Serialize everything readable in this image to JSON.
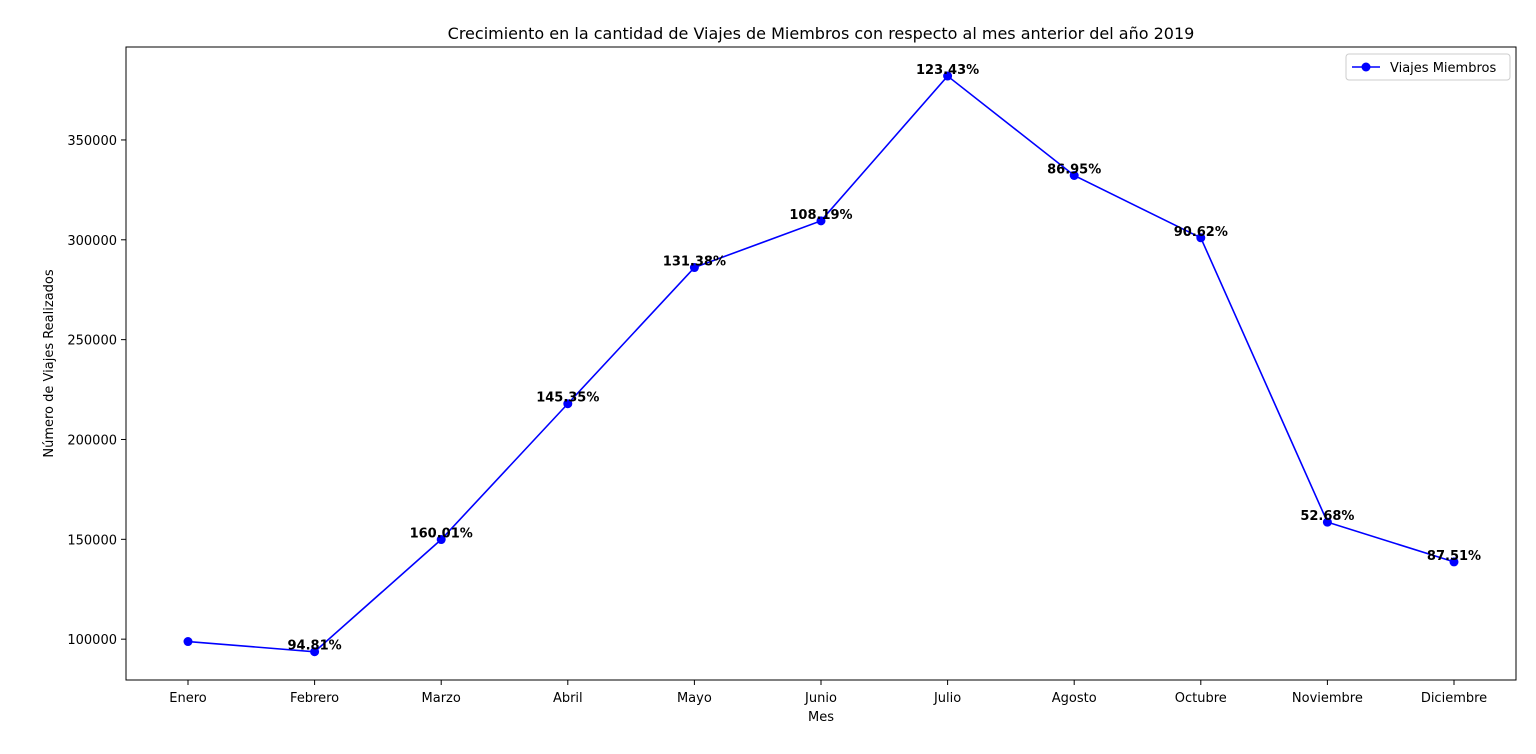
{
  "chart_data": {
    "type": "line",
    "title": "Crecimiento en la cantidad de Viajes de Miembros con respecto al mes anterior del año 2019",
    "xlabel": "Mes",
    "ylabel": "Número de Viajes Realizados",
    "categories": [
      "Enero",
      "Febrero",
      "Marzo",
      "Abril",
      "Mayo",
      "Junio",
      "Julio",
      "Agosto",
      "Octubre",
      "Noviembre",
      "Diciembre"
    ],
    "series": [
      {
        "name": "Viajes Miembros",
        "color": "#0000ff",
        "marker": "circle",
        "values": [
          98800,
          93700,
          149900,
          217900,
          286100,
          309500,
          382000,
          332200,
          301000,
          158600,
          138700
        ],
        "labels": [
          "",
          "94.81%",
          "160.01%",
          "145.35%",
          "131.38%",
          "108.19%",
          "123.43%",
          "86.95%",
          "90.62%",
          "52.68%",
          "87.51%"
        ]
      }
    ],
    "yticks": [
      100000,
      150000,
      200000,
      250000,
      300000,
      350000
    ],
    "ylim": [
      79550,
      396550
    ],
    "grid": false,
    "legend_position": "top-right"
  }
}
